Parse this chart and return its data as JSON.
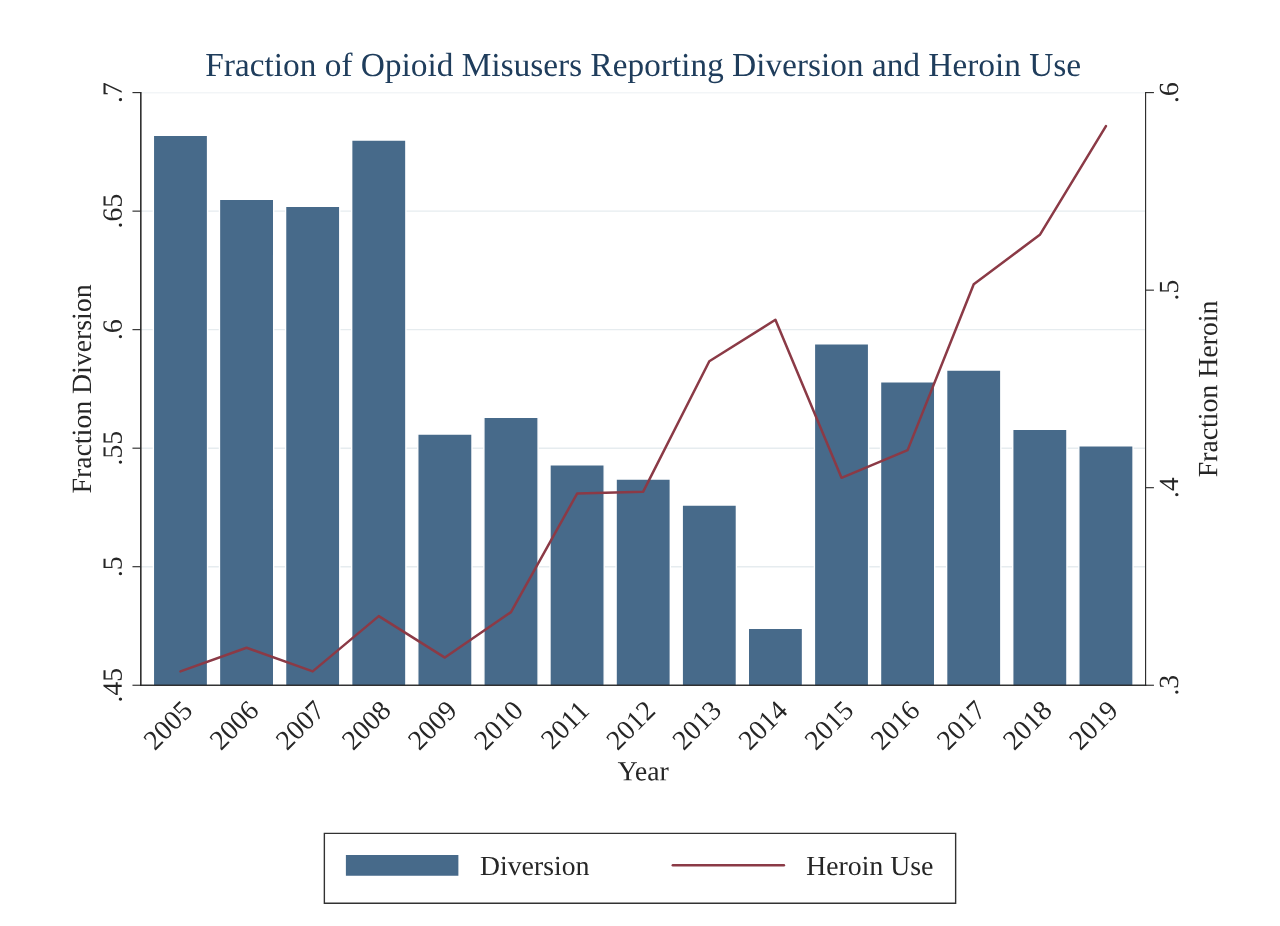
{
  "chart_data": {
    "type": "bar",
    "title": "Fraction of Opioid Misusers Reporting Diversion and Heroin Use",
    "xlabel": "Year",
    "ylabel": "Fraction Diversion",
    "y2label": "Fraction Heroin",
    "categories": [
      "2005",
      "2006",
      "2007",
      "2008",
      "2009",
      "2010",
      "2011",
      "2012",
      "2013",
      "2014",
      "2015",
      "2016",
      "2017",
      "2018",
      "2019"
    ],
    "series": [
      {
        "name": "Diversion",
        "color": "#476a8a",
        "values": [
          0.682,
          0.655,
          0.652,
          0.68,
          0.556,
          0.563,
          0.543,
          0.537,
          0.526,
          0.474,
          0.594,
          0.578,
          0.583,
          0.558,
          0.551
        ]
      },
      {
        "name": "Heroin Use",
        "type": "line",
        "axis": "y2",
        "color": "#8b3a46",
        "values": [
          0.307,
          0.319,
          0.307,
          0.335,
          0.314,
          0.337,
          0.397,
          0.398,
          0.464,
          0.485,
          0.405,
          0.419,
          0.503,
          0.528,
          0.583
        ]
      }
    ],
    "ylim": [
      0.45,
      0.7
    ],
    "yticks": [
      {
        "value": 0.45,
        "label": ".45"
      },
      {
        "value": 0.5,
        "label": ".5"
      },
      {
        "value": 0.55,
        "label": ".55"
      },
      {
        "value": 0.6,
        "label": ".6"
      },
      {
        "value": 0.65,
        "label": ".65"
      },
      {
        "value": 0.7,
        "label": ".7"
      }
    ],
    "y2lim": [
      0.3,
      0.6
    ],
    "y2ticks": [
      {
        "value": 0.3,
        "label": ".3"
      },
      {
        "value": 0.4,
        "label": ".4"
      },
      {
        "value": 0.5,
        "label": ".5"
      },
      {
        "value": 0.6,
        "label": ".6"
      }
    ],
    "grid": "y",
    "legend": "bottom"
  }
}
